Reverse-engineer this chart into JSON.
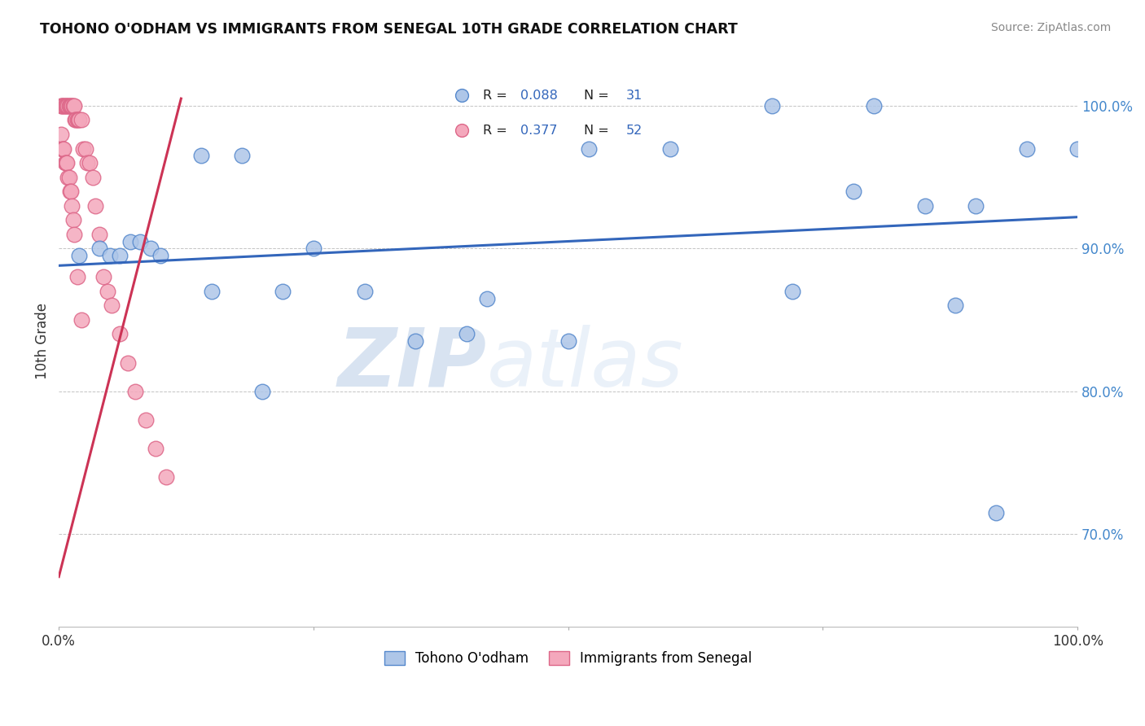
{
  "title": "TOHONO O'ODHAM VS IMMIGRANTS FROM SENEGAL 10TH GRADE CORRELATION CHART",
  "source_text": "Source: ZipAtlas.com",
  "xlabel": "",
  "ylabel": "10th Grade",
  "xlim": [
    0.0,
    1.0
  ],
  "ylim": [
    0.635,
    1.035
  ],
  "yticks": [
    0.7,
    0.8,
    0.9,
    1.0
  ],
  "ytick_labels": [
    "70.0%",
    "80.0%",
    "90.0%",
    "100.0%"
  ],
  "xticks": [
    0.0,
    0.25,
    0.5,
    0.75,
    1.0
  ],
  "xtick_labels": [
    "0.0%",
    "",
    "",
    "",
    "100.0%"
  ],
  "blue_R": 0.088,
  "blue_N": 31,
  "pink_R": 0.377,
  "pink_N": 52,
  "blue_color": "#aec6e8",
  "pink_color": "#f4a8bc",
  "blue_edge": "#5588cc",
  "pink_edge": "#dd6688",
  "regression_blue_color": "#3366bb",
  "regression_pink_color": "#cc3355",
  "watermark_zip": "ZIP",
  "watermark_atlas": "atlas",
  "legend_label_blue": "Tohono O'odham",
  "legend_label_pink": "Immigrants from Senegal",
  "blue_dots_x": [
    0.02,
    0.04,
    0.05,
    0.06,
    0.07,
    0.08,
    0.09,
    0.1,
    0.14,
    0.18,
    0.22,
    0.3,
    0.35,
    0.4,
    0.42,
    0.5,
    0.52,
    0.6,
    0.7,
    0.72,
    0.78,
    0.8,
    0.85,
    0.88,
    0.9,
    0.92,
    0.95,
    1.0,
    0.15,
    0.2,
    0.25
  ],
  "blue_dots_y": [
    0.895,
    0.9,
    0.895,
    0.895,
    0.905,
    0.905,
    0.9,
    0.895,
    0.965,
    0.965,
    0.87,
    0.87,
    0.835,
    0.84,
    0.865,
    0.835,
    0.97,
    0.97,
    1.0,
    0.87,
    0.94,
    1.0,
    0.93,
    0.86,
    0.93,
    0.715,
    0.97,
    0.97,
    0.87,
    0.8,
    0.9
  ],
  "pink_dots_x": [
    0.002,
    0.003,
    0.004,
    0.005,
    0.006,
    0.007,
    0.008,
    0.009,
    0.01,
    0.011,
    0.012,
    0.013,
    0.014,
    0.015,
    0.016,
    0.017,
    0.018,
    0.019,
    0.02,
    0.022,
    0.024,
    0.026,
    0.028,
    0.03,
    0.033,
    0.036,
    0.04,
    0.044,
    0.048,
    0.052,
    0.06,
    0.068,
    0.075,
    0.085,
    0.095,
    0.105,
    0.002,
    0.003,
    0.004,
    0.005,
    0.006,
    0.007,
    0.008,
    0.009,
    0.01,
    0.011,
    0.012,
    0.013,
    0.014,
    0.015,
    0.018,
    0.022
  ],
  "pink_dots_y": [
    1.0,
    1.0,
    1.0,
    1.0,
    1.0,
    1.0,
    1.0,
    1.0,
    1.0,
    1.0,
    1.0,
    1.0,
    1.0,
    1.0,
    0.99,
    0.99,
    0.99,
    0.99,
    0.99,
    0.99,
    0.97,
    0.97,
    0.96,
    0.96,
    0.95,
    0.93,
    0.91,
    0.88,
    0.87,
    0.86,
    0.84,
    0.82,
    0.8,
    0.78,
    0.76,
    0.74,
    0.98,
    0.97,
    0.97,
    0.97,
    0.96,
    0.96,
    0.96,
    0.95,
    0.95,
    0.94,
    0.94,
    0.93,
    0.92,
    0.91,
    0.88,
    0.85
  ],
  "pink_line_x": [
    0.0,
    0.12
  ],
  "pink_line_y_start": 0.67,
  "pink_line_y_end": 1.005,
  "blue_line_x": [
    0.0,
    1.0
  ],
  "blue_line_y_start": 0.888,
  "blue_line_y_end": 0.922
}
